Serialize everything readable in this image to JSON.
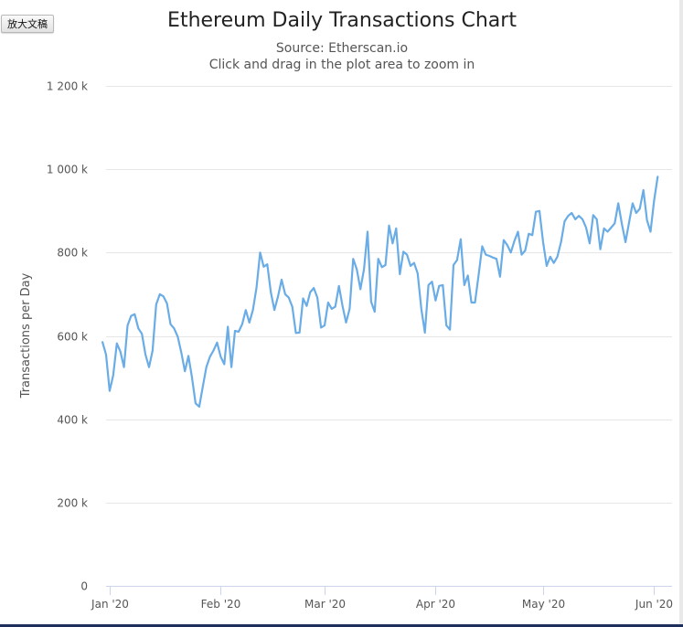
{
  "zoom_button": {
    "label": "放大文稿"
  },
  "chart_data": {
    "type": "line",
    "title": "Ethereum Daily Transactions Chart",
    "subtitle": "Source: Etherscan.io",
    "subtitle2": "Click and drag in the plot area to zoom in",
    "ylabel": "Transactions per Day",
    "xlabel": "",
    "ylim": [
      0,
      1200000
    ],
    "yticks": [
      {
        "value": 0,
        "label": "0"
      },
      {
        "value": 200000,
        "label": "200 k"
      },
      {
        "value": 400000,
        "label": "400 k"
      },
      {
        "value": 600000,
        "label": "600 k"
      },
      {
        "value": 800000,
        "label": "800 k"
      },
      {
        "value": 1000000,
        "label": "1 000 k"
      },
      {
        "value": 1200000,
        "label": "1 200 k"
      }
    ],
    "xlim": [
      "2019-12-31",
      "2020-06-06"
    ],
    "xticks": [
      {
        "date": "2020-01-01",
        "label": "Jan '20"
      },
      {
        "date": "2020-02-01",
        "label": "Feb '20"
      },
      {
        "date": "2020-03-01",
        "label": "Mar '20"
      },
      {
        "date": "2020-04-01",
        "label": "Apr '20"
      },
      {
        "date": "2020-05-01",
        "label": "May '20"
      },
      {
        "date": "2020-06-01",
        "label": "Jun '20"
      }
    ],
    "grid": true,
    "legend": "none",
    "series": [
      {
        "color": "#6aace6",
        "start_date": "2019-12-30",
        "values": [
          585000,
          555000,
          468000,
          505000,
          582000,
          562000,
          525000,
          625000,
          648000,
          652000,
          618000,
          605000,
          555000,
          525000,
          565000,
          675000,
          700000,
          695000,
          678000,
          628000,
          618000,
          598000,
          560000,
          515000,
          552000,
          500000,
          438000,
          430000,
          478000,
          525000,
          550000,
          565000,
          584000,
          550000,
          532000,
          622000,
          525000,
          612000,
          610000,
          628000,
          662000,
          632000,
          662000,
          715000,
          800000,
          766000,
          772000,
          705000,
          662000,
          695000,
          735000,
          700000,
          692000,
          670000,
          607000,
          608000,
          690000,
          672000,
          705000,
          715000,
          692000,
          620000,
          625000,
          680000,
          665000,
          670000,
          720000,
          672000,
          632000,
          665000,
          785000,
          760000,
          712000,
          760000,
          850000,
          682000,
          658000,
          785000,
          765000,
          770000,
          865000,
          822000,
          858000,
          748000,
          802000,
          795000,
          768000,
          775000,
          750000,
          665000,
          608000,
          722000,
          730000,
          685000,
          720000,
          722000,
          625000,
          615000,
          770000,
          782000,
          832000,
          722000,
          745000,
          680000,
          680000,
          745000,
          815000,
          795000,
          792000,
          788000,
          785000,
          742000,
          830000,
          818000,
          800000,
          828000,
          850000,
          795000,
          805000,
          845000,
          842000,
          898000,
          900000,
          825000,
          768000,
          790000,
          775000,
          790000,
          825000,
          875000,
          888000,
          895000,
          880000,
          888000,
          880000,
          860000,
          822000,
          890000,
          880000,
          808000,
          858000,
          850000,
          860000,
          870000,
          918000,
          868000,
          825000,
          872000,
          918000,
          895000,
          905000,
          950000,
          878000,
          850000,
          925000,
          982000
        ]
      }
    ]
  }
}
